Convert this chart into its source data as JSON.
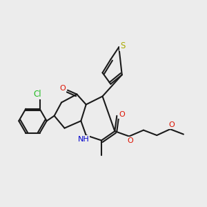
{
  "bg_color": "#ececec",
  "colors": {
    "bond": "#1a1a1a",
    "O": "#dd1100",
    "N": "#0000cc",
    "S": "#aaaa00",
    "Cl": "#22bb22"
  },
  "lw": 1.5,
  "dbo": 0.01,
  "fs": 8.0
}
